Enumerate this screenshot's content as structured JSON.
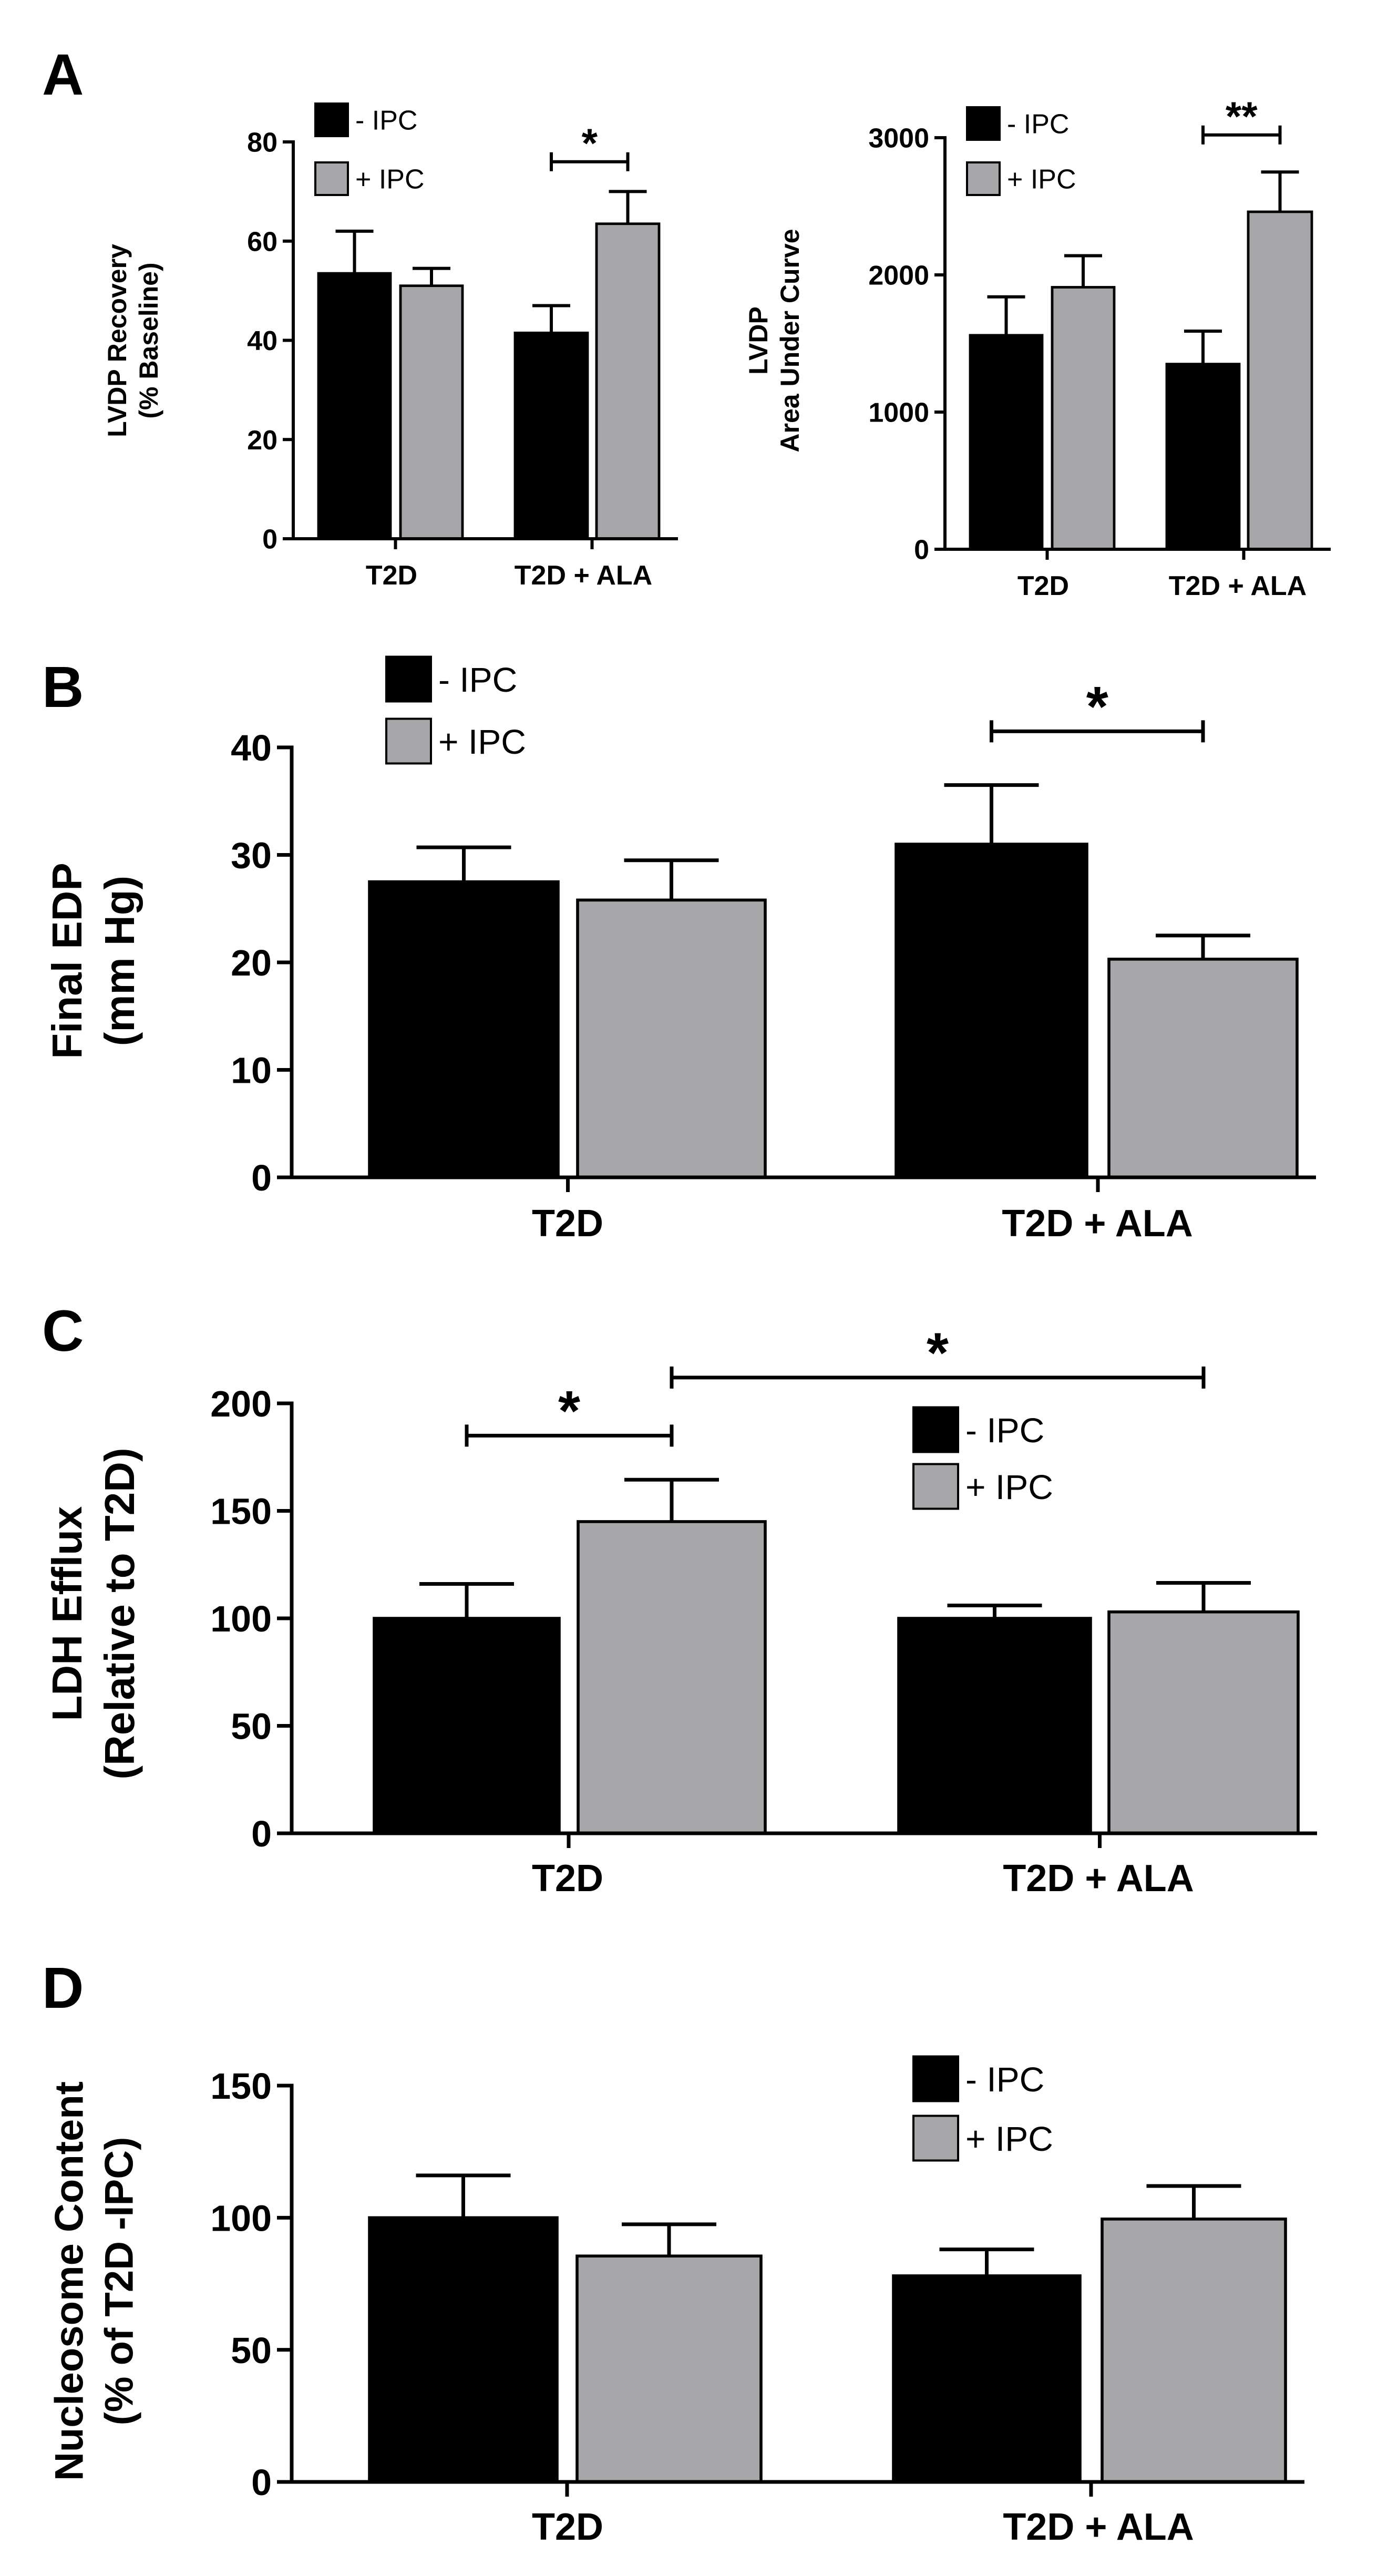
{
  "colors": {
    "minus_ipc": "#000000",
    "plus_ipc": "#a7a7a9",
    "axis": "#000000"
  },
  "chart_data": [
    {
      "panel": "A",
      "type": "bar",
      "categories": [
        "T2D",
        "T2D + ALA"
      ],
      "series": [
        {
          "name": "- IPC",
          "values": [
            53.5,
            41.5
          ],
          "errors": [
            8.5,
            5.5
          ]
        },
        {
          "name": "+ IPC",
          "values": [
            51,
            63.5
          ],
          "errors": [
            3.5,
            6.5
          ]
        }
      ],
      "ylabel_lines": [
        "LVDP Recovery",
        "(% Baseline)"
      ],
      "ylim": [
        0,
        80
      ],
      "yticks": [
        "0",
        "20",
        "40",
        "60",
        "80"
      ],
      "legend": [
        "- IPC",
        "+ IPC"
      ],
      "significance": [
        {
          "from": [
            1,
            0
          ],
          "to": [
            1,
            1
          ],
          "label": "*",
          "y": 76
        }
      ]
    },
    {
      "panel": "",
      "type": "bar",
      "categories": [
        "T2D",
        "T2D + ALA"
      ],
      "series": [
        {
          "name": "- IPC",
          "values": [
            1560,
            1350
          ],
          "errors": [
            280,
            240
          ]
        },
        {
          "name": "+ IPC",
          "values": [
            1910,
            2460
          ],
          "errors": [
            230,
            290
          ]
        }
      ],
      "ylabel_lines": [
        "LVDP",
        "Area Under Curve"
      ],
      "ylim": [
        0,
        3000
      ],
      "yticks": [
        "0",
        "1000",
        "2000",
        "3000"
      ],
      "legend": [
        "- IPC",
        "+ IPC"
      ],
      "significance": [
        {
          "from": [
            1,
            0
          ],
          "to": [
            1,
            1
          ],
          "label": "**",
          "y": 3020
        }
      ]
    },
    {
      "panel": "B",
      "type": "bar",
      "categories": [
        "T2D",
        "T2D + ALA"
      ],
      "series": [
        {
          "name": "- IPC",
          "values": [
            27.5,
            31
          ],
          "errors": [
            3.2,
            5.5
          ]
        },
        {
          "name": "+ IPC",
          "values": [
            25.8,
            20.3
          ],
          "errors": [
            3.7,
            2.2
          ]
        }
      ],
      "ylabel_lines": [
        "Final  EDP",
        "(mm Hg)"
      ],
      "ylim": [
        0,
        40
      ],
      "yticks": [
        "0",
        "10",
        "20",
        "30",
        "40"
      ],
      "legend": [
        "- IPC",
        "+ IPC"
      ],
      "significance": [
        {
          "from": [
            1,
            0
          ],
          "to": [
            1,
            1
          ],
          "label": "*",
          "y": 41.5
        }
      ]
    },
    {
      "panel": "C",
      "type": "bar",
      "categories": [
        "T2D",
        "T2D + ALA"
      ],
      "series": [
        {
          "name": "- IPC",
          "values": [
            100,
            100
          ],
          "errors": [
            16,
            6
          ]
        },
        {
          "name": "+ IPC",
          "values": [
            145,
            103
          ],
          "errors": [
            19.5,
            13.5
          ]
        }
      ],
      "ylabel_lines": [
        "LDH Efflux",
        "(Relative to T2D)"
      ],
      "ylim": [
        0,
        200
      ],
      "yticks": [
        "0",
        "50",
        "100",
        "150",
        "200"
      ],
      "legend": [
        "- IPC",
        "+ IPC"
      ],
      "significance": [
        {
          "from": [
            0,
            0
          ],
          "to": [
            0,
            1
          ],
          "label": "*",
          "y": 185
        },
        {
          "from": [
            0,
            1
          ],
          "to": [
            1,
            1
          ],
          "label": "*",
          "y": 212
        }
      ]
    },
    {
      "panel": "D",
      "type": "bar",
      "categories": [
        "T2D",
        "T2D + ALA"
      ],
      "series": [
        {
          "name": "- IPC",
          "values": [
            100,
            78
          ],
          "errors": [
            16,
            10
          ]
        },
        {
          "name": "+ IPC",
          "values": [
            85.5,
            99.5
          ],
          "errors": [
            12,
            12.5
          ]
        }
      ],
      "ylabel_lines": [
        "Nucleosome Content",
        "(% of T2D -IPC)"
      ],
      "ylim": [
        0,
        150
      ],
      "yticks": [
        "0",
        "50",
        "100",
        "150"
      ],
      "legend": [
        "- IPC",
        "+ IPC"
      ],
      "significance": []
    }
  ]
}
